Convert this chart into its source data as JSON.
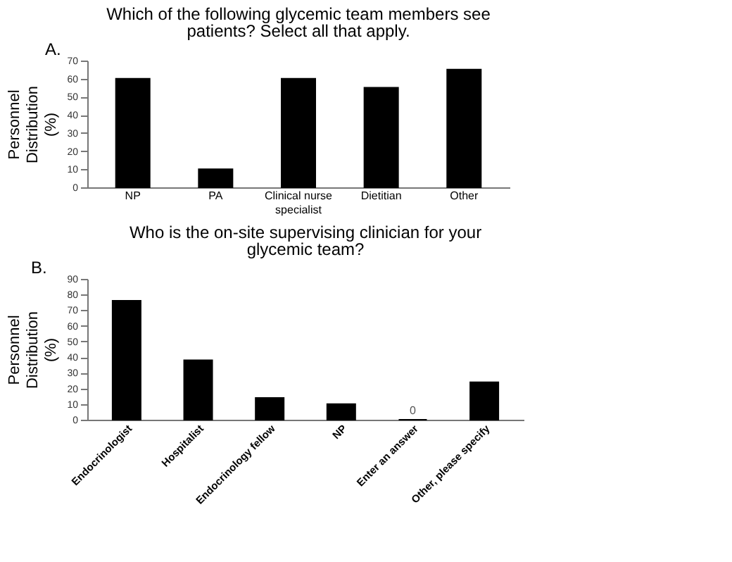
{
  "chart_data": [
    {
      "type": "bar",
      "title": "A.",
      "subtitle": "Which of the following glycemic team members see patients?   Select all that apply.",
      "ylabel": "Personnel Distribution (%)",
      "categories": [
        "NP",
        "PA",
        "Clinical nurse specialist",
        "Dietitian",
        "Other"
      ],
      "values": [
        60,
        10,
        60,
        55,
        65
      ],
      "color": "#000000",
      "ylim": [
        0,
        70
      ],
      "yticks": [
        0,
        10,
        20,
        30,
        40,
        50,
        60,
        70
      ],
      "grid": false
    },
    {
      "type": "bar",
      "title": "B.",
      "subtitle": "Who is the on-site supervising clinician for your glycemic team?",
      "ylabel": "Personnel Distribution (%)",
      "categories": [
        "Endocrinologist",
        "Hospitalist",
        "Endocrinology fellow",
        "NP",
        "Enter an answer",
        "Other, please specify"
      ],
      "values": [
        76,
        38,
        14,
        10,
        0,
        24
      ],
      "value_labels": [
        null,
        null,
        null,
        null,
        "0",
        null
      ],
      "color": "#000000",
      "ylim": [
        0,
        90
      ],
      "yticks": [
        0,
        10,
        20,
        30,
        40,
        50,
        60,
        70,
        80,
        90
      ],
      "grid": false
    }
  ]
}
